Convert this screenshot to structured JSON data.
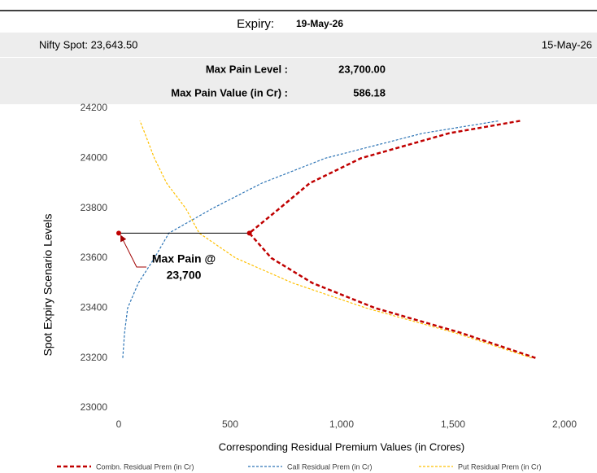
{
  "header": {
    "expiry_label": "Expiry:",
    "expiry_date": "19-May-26",
    "spot": "Nifty Spot: 23,643.50",
    "date": "15-May-26",
    "max_pain_level_label": "Max Pain Level :",
    "max_pain_level": "23,700.00",
    "max_pain_value_label": "Max Pain Value (in Cr) :",
    "max_pain_value": "586.18"
  },
  "chart_data": {
    "type": "line",
    "y_label": "Spot Expiry  Scenario Levels",
    "x_label": "Corresponding Residual Premium Values (in Crores)",
    "levels": [
      23200,
      23300,
      23400,
      23500,
      23600,
      23700,
      23800,
      23900,
      24000,
      24100,
      24150
    ],
    "series": [
      {
        "name": "Combn. Residual Prem (in Cr)",
        "color": "#c00000",
        "values": [
          1870,
          1537,
          1150,
          869,
          685,
          586,
          723,
          857,
          1087,
          1482,
          1803
        ]
      },
      {
        "name": "Call Residual Prem (in Cr)",
        "color": "#2e75b6",
        "values": [
          18,
          26,
          40,
          88,
          160,
          225,
          423,
          642,
          927,
          1365,
          1708
        ]
      },
      {
        "name": "Put Residual Prem (in Cr)",
        "color": "#ffc000",
        "values": [
          1852,
          1511,
          1110,
          781,
          525,
          361,
          300,
          215,
          160,
          117,
          95
        ]
      }
    ],
    "max_pain_line": {
      "x": [
        0,
        586.18
      ],
      "y": [
        23700,
        23700
      ]
    },
    "annotation": [
      "Max Pain @",
      "23,700"
    ],
    "xlim": [
      0,
      2000
    ],
    "xticks": [
      0,
      500,
      {
        "value": 1000,
        "label": "1,000"
      },
      {
        "value": 1500,
        "label": "1,500"
      },
      {
        "value": 2000,
        "label": "2,000"
      }
    ],
    "ylim": [
      23000,
      24200
    ],
    "yticks": [
      23000,
      23200,
      23400,
      23600,
      23800,
      24000,
      24200
    ]
  }
}
